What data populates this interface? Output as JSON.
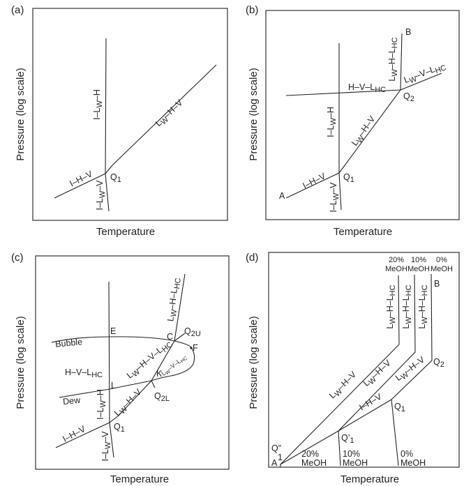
{
  "panels": [
    {
      "id": "a",
      "label": "(a)",
      "xlabel": "Temperature",
      "ylabel": "Pressure (log scale)",
      "curves": [
        "I–Lw–H",
        "Lw–H–V",
        "I–H–V",
        "I–Lw–V"
      ],
      "points": [
        "Q1"
      ]
    },
    {
      "id": "b",
      "label": "(b)",
      "xlabel": "Temperature",
      "ylabel": "Pressure (log scale)",
      "curves": [
        "Lw–H–LHC",
        "Lw–V–LHC",
        "H–V–LHC",
        "I–Lw–H",
        "Lw–H–V",
        "I–H–V",
        "I–Lw–V"
      ],
      "points": [
        "A",
        "B",
        "Q1",
        "Q2"
      ]
    },
    {
      "id": "c",
      "label": "(c)",
      "xlabel": "Temperature",
      "ylabel": "Pressure (log scale)",
      "curves": [
        "Lw–H–LHC",
        "Bubble",
        "H–V–LHC",
        "Lw–H–V–LHC",
        "Lw–V–LHC",
        "Dew",
        "I–Lw–H",
        "Lw–H–V",
        "I–H–V",
        "I–Lw–V"
      ],
      "points": [
        "E",
        "C",
        "Q2U",
        "F",
        "K",
        "L",
        "Q2L",
        "Q1"
      ]
    },
    {
      "id": "d",
      "label": "(d)",
      "xlabel": "Temperature",
      "ylabel": "Pressure (log scale)",
      "top_series": [
        "20%",
        "10%",
        "0%"
      ],
      "bottom_series": [
        "20%",
        "10%",
        "0%"
      ],
      "meoh": "MeOH",
      "curves": [
        "Lw–H–LHC",
        "Lw–H–V",
        "I–H–V"
      ],
      "points": [
        "B",
        "Q2",
        "Q1",
        "Q'1",
        "Q\"1",
        "A"
      ]
    }
  ],
  "text": {
    "I": "I",
    "H": "H",
    "V": "V",
    "L": "L",
    "W": "W",
    "HC": "HC",
    "Q": "Q",
    "sub1": "1",
    "sub2": "2",
    "sub2U": "2U",
    "sub2L": "2L",
    "dash": "–"
  }
}
